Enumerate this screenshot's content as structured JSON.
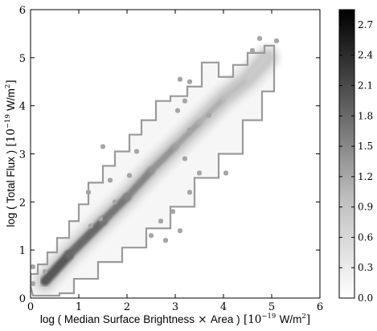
{
  "chart_data": {
    "type": "heatmap",
    "subtype": "2d-histogram",
    "title": "",
    "xlabel": {
      "prefix": "log ( Median Surface Brightness",
      "times": "×",
      "middle": "Area )",
      "unit_open": "[10",
      "unit_exp": "−19",
      "unit_mid": "W/m",
      "unit_pow": "2",
      "unit_close": "]"
    },
    "ylabel": {
      "prefix": "log ( Total Flux )",
      "unit_open": "[10",
      "unit_exp": "−19",
      "unit_mid": "W/m",
      "unit_pow": "2",
      "unit_close": "]"
    },
    "xlim": [
      0,
      6
    ],
    "ylim": [
      0,
      6
    ],
    "xticks": [
      "0",
      "1",
      "2",
      "3",
      "4",
      "5",
      "6"
    ],
    "yticks": [
      "0",
      "1",
      "2",
      "3",
      "4",
      "5",
      "6"
    ],
    "colorbar": {
      "range": [
        0.0,
        2.85
      ],
      "ticks": [
        "0.0",
        "0.3",
        "0.6",
        "0.9",
        "1.2",
        "1.5",
        "1.8",
        "2.1",
        "2.4",
        "2.7"
      ],
      "colormap": "grey-white-to-black"
    },
    "ridge": [
      [
        0.3,
        0.35
      ],
      [
        0.8,
        0.9
      ],
      [
        1.5,
        1.6
      ],
      [
        2.0,
        2.1
      ],
      [
        2.5,
        2.65
      ],
      [
        3.0,
        3.15
      ],
      [
        3.5,
        3.65
      ],
      [
        4.0,
        4.15
      ],
      [
        4.5,
        4.55
      ],
      [
        4.9,
        5.0
      ]
    ],
    "contour_outline": [
      [
        0.05,
        0.05
      ],
      [
        0.6,
        0.1
      ],
      [
        0.9,
        0.4
      ],
      [
        1.4,
        0.75
      ],
      [
        1.9,
        1.05
      ],
      [
        2.4,
        1.45
      ],
      [
        2.9,
        1.9
      ],
      [
        3.4,
        2.5
      ],
      [
        3.9,
        3.0
      ],
      [
        4.4,
        3.7
      ],
      [
        4.8,
        4.3
      ],
      [
        5.05,
        5.25
      ],
      [
        4.85,
        5.1
      ],
      [
        4.5,
        4.85
      ],
      [
        4.2,
        4.6
      ],
      [
        3.9,
        4.9
      ],
      [
        3.55,
        4.4
      ],
      [
        3.25,
        4.2
      ],
      [
        2.9,
        4.1
      ],
      [
        2.6,
        3.7
      ],
      [
        2.3,
        3.4
      ],
      [
        2.05,
        3.05
      ],
      [
        1.75,
        2.75
      ],
      [
        1.5,
        2.4
      ],
      [
        1.2,
        1.95
      ],
      [
        1.0,
        1.6
      ],
      [
        0.8,
        1.25
      ],
      [
        0.55,
        0.95
      ],
      [
        0.35,
        0.7
      ],
      [
        0.15,
        0.5
      ],
      [
        0.0,
        0.25
      ]
    ],
    "outliers": [
      [
        0.05,
        0.65
      ],
      [
        0.05,
        0.3
      ],
      [
        0.3,
        0.55
      ],
      [
        1.2,
        2.2
      ],
      [
        1.45,
        1.65
      ],
      [
        1.25,
        1.5
      ],
      [
        1.75,
        2.0
      ],
      [
        2.95,
        1.8
      ],
      [
        2.7,
        1.6
      ],
      [
        3.1,
        1.4
      ],
      [
        2.5,
        1.3
      ],
      [
        2.8,
        1.2
      ],
      [
        3.3,
        2.2
      ],
      [
        3.5,
        2.6
      ],
      [
        3.2,
        2.9
      ],
      [
        4.05,
        2.6
      ],
      [
        2.05,
        2.55
      ],
      [
        1.65,
        2.45
      ],
      [
        1.5,
        3.15
      ],
      [
        2.2,
        3.05
      ],
      [
        3.3,
        3.5
      ],
      [
        3.7,
        3.8
      ],
      [
        3.2,
        4.1
      ],
      [
        3.05,
        3.9
      ],
      [
        3.1,
        4.55
      ],
      [
        3.3,
        4.5
      ],
      [
        4.75,
        5.4
      ],
      [
        5.1,
        5.35
      ],
      [
        4.6,
        5.15
      ]
    ]
  }
}
